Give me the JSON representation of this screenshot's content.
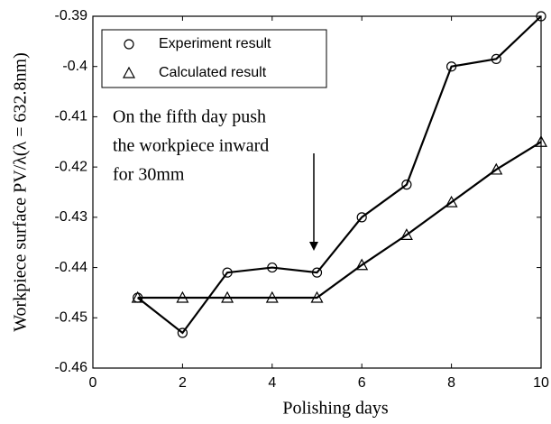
{
  "chart_data": {
    "type": "line",
    "x_label": "Polishing days",
    "y_label": "Workpiece surface PV/λ(λ = 632.8nm)",
    "annotation": [
      "On the fifth day push",
      "the workpiece inward",
      "for 30mm"
    ],
    "x": [
      1,
      2,
      3,
      4,
      5,
      6,
      7,
      8,
      9,
      10
    ],
    "series": [
      {
        "name": "Experiment result",
        "color": "#000000",
        "marker": "circle",
        "values": [
          -0.446,
          -0.453,
          -0.441,
          -0.44,
          -0.441,
          -0.43,
          -0.4235,
          -0.4,
          -0.3985,
          -0.39
        ]
      },
      {
        "name": "Calculated result",
        "color": "#000000",
        "marker": "triangle",
        "values": [
          -0.446,
          -0.446,
          -0.446,
          -0.446,
          -0.446,
          -0.4395,
          -0.4335,
          -0.427,
          -0.4205,
          -0.415
        ]
      }
    ],
    "xlim": [
      0,
      10
    ],
    "xticks": [
      0,
      2,
      4,
      6,
      8,
      10
    ],
    "ylim": [
      -0.46,
      -0.39
    ],
    "yticks": [
      -0.46,
      -0.45,
      -0.44,
      -0.43,
      -0.42,
      -0.41,
      -0.4,
      -0.39
    ],
    "grid": false,
    "legend": "upper-left"
  }
}
